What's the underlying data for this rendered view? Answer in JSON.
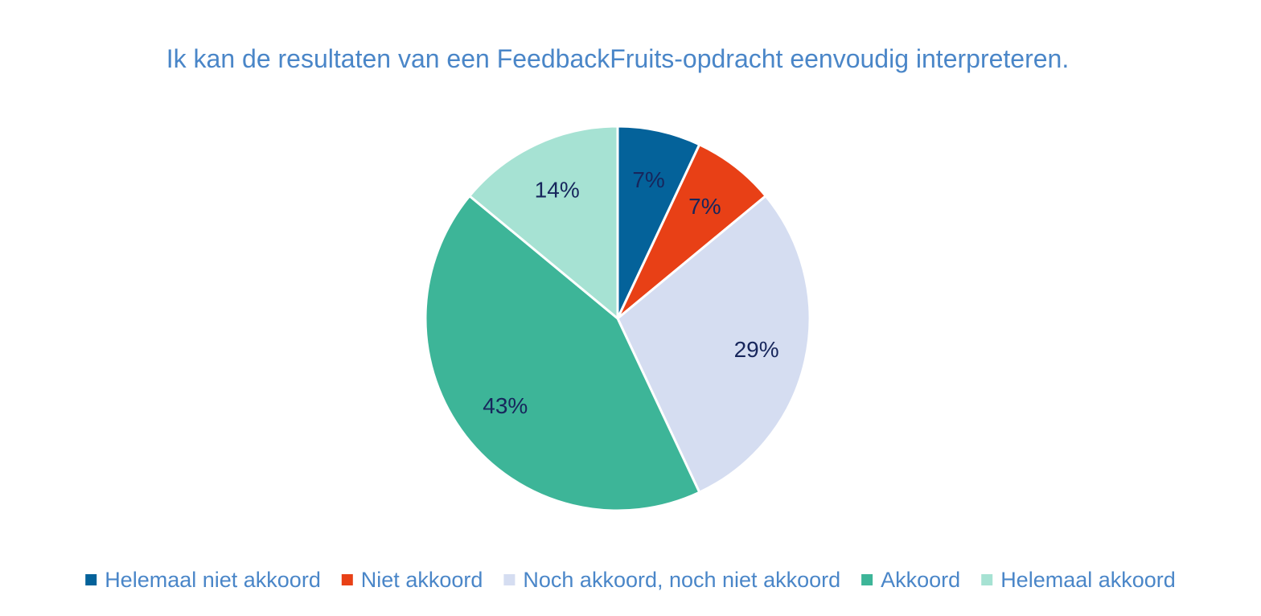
{
  "chart_data": {
    "type": "pie",
    "title": "Ik kan de resultaten van een FeedbackFruits-opdracht eenvoudig interpreteren.",
    "categories": [
      "Helemaal niet akkoord",
      "Niet akkoord",
      "Noch akkoord, noch niet akkoord",
      "Akkoord",
      "Helemaal akkoord"
    ],
    "values": [
      7,
      7,
      29,
      43,
      14
    ],
    "labels": [
      "7%",
      "7%",
      "29%",
      "43%",
      "14%"
    ],
    "colors": [
      "#04629a",
      "#e84016",
      "#d5ddf1",
      "#3db598",
      "#a6e2d3"
    ],
    "legend_position": "bottom"
  }
}
